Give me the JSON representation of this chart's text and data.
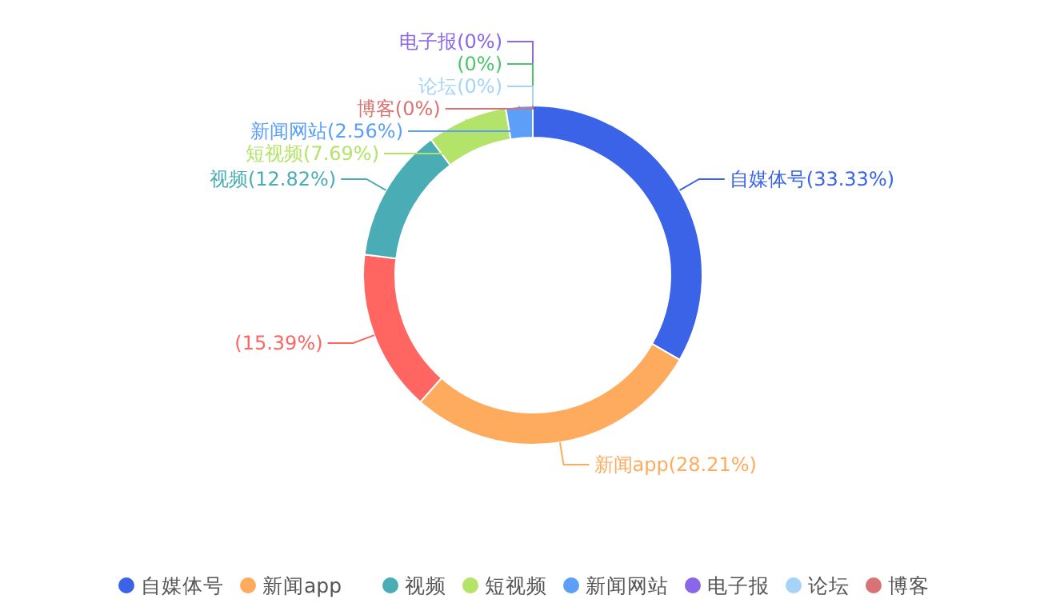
{
  "chart_data": {
    "type": "donut",
    "categories": [
      "自媒体号",
      "新闻app",
      null,
      "视频",
      "短视频",
      "新闻网站",
      "电子报",
      null,
      "论坛",
      "博客"
    ],
    "values": [
      33.33,
      28.21,
      15.39,
      12.82,
      7.69,
      2.56,
      0,
      0,
      0,
      0
    ],
    "value_labels": [
      "(33.33%)",
      "(28.21%)",
      "(15.39%)",
      "(12.82%)",
      "(7.69%)",
      "(2.56%)",
      "(0%)",
      "(0%)",
      "(0%)",
      "(0%)"
    ],
    "colors": [
      "#3b63e8",
      "#ffab5e",
      "#ff6561",
      "#4aacb4",
      "#b4e36a",
      "#5b9ff8",
      "#8a66e8",
      "#4cc46a",
      "#a6d4f8",
      "#d97272"
    ],
    "legend": "bottom"
  }
}
